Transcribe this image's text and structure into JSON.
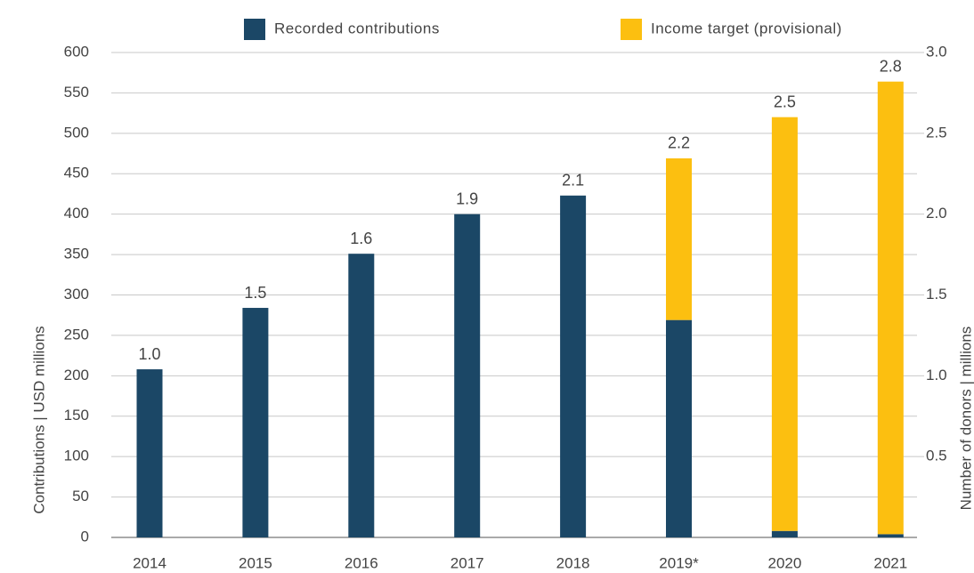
{
  "chart_data": {
    "type": "stacked_bar",
    "categories": [
      "2014",
      "2015",
      "2016",
      "2017",
      "2018",
      "2019*",
      "2020",
      "2021"
    ],
    "series": [
      {
        "name": "Recorded contributions",
        "color": "#1b4766",
        "values": [
          208,
          284,
          351,
          400,
          423,
          269,
          8,
          4
        ]
      },
      {
        "name": "Income target (provisional)",
        "color": "#fcbf10",
        "values": [
          0,
          0,
          0,
          0,
          0,
          200,
          512,
          560
        ]
      }
    ],
    "annotations": [
      "1.0",
      "1.5",
      "1.6",
      "1.9",
      "2.1",
      "2.2",
      "2.5",
      "2.8"
    ],
    "ylabel": "Contributions | USD millions",
    "y2label": "Number of donors | millions",
    "ylim": [
      0,
      600
    ],
    "yticks": [
      0,
      50,
      100,
      150,
      200,
      250,
      300,
      350,
      400,
      450,
      500,
      550,
      600
    ],
    "y2lim": [
      0,
      3
    ],
    "y2ticks": [
      0.5,
      {
        "value": 1,
        "label": "1.0"
      },
      1.5,
      {
        "value": 2,
        "label": "2.0"
      },
      2.5,
      {
        "value": 3,
        "label": "3.0"
      }
    ],
    "grid": true
  }
}
